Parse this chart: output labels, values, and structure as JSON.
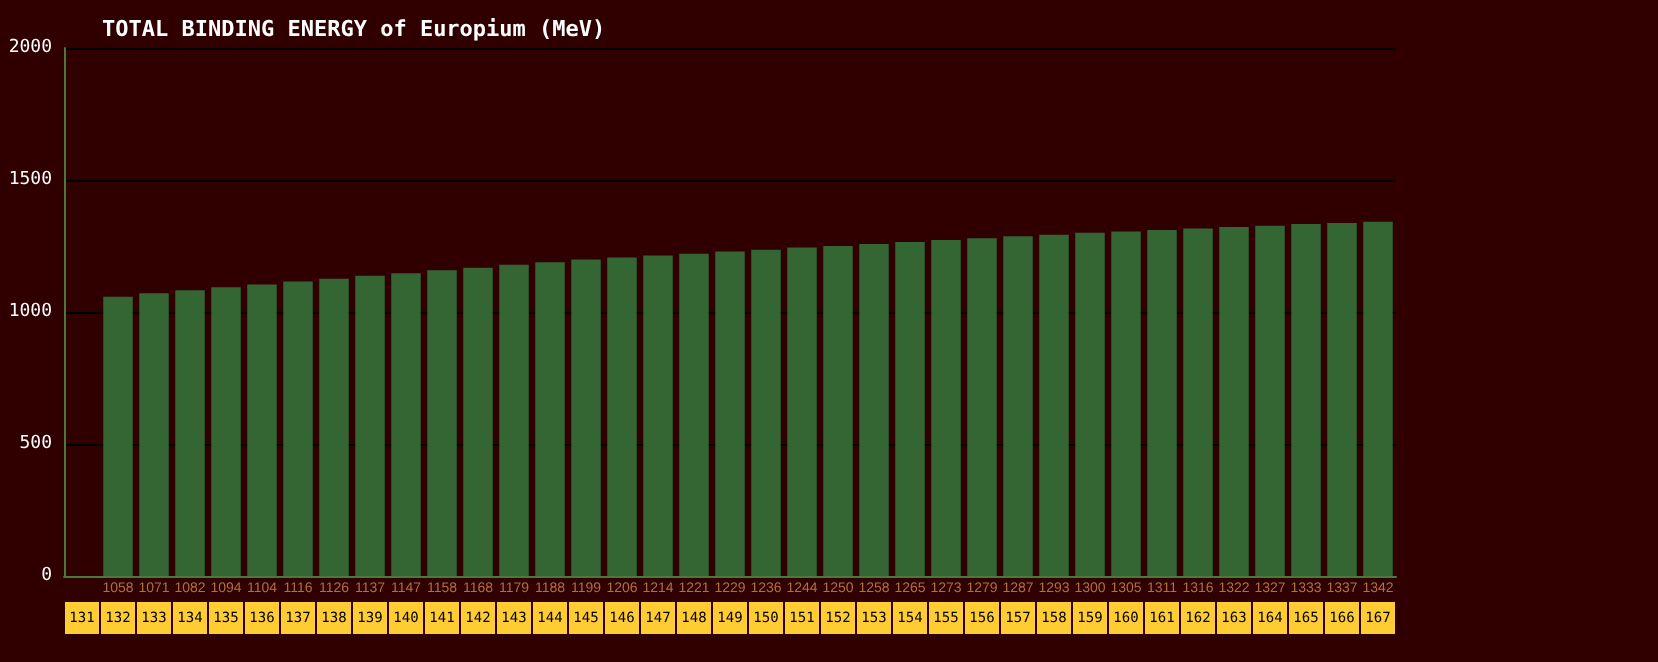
{
  "chart_data": {
    "type": "bar",
    "title": "TOTAL BINDING ENERGY of Europium (MeV)",
    "categories": [
      "131",
      "132",
      "133",
      "134",
      "135",
      "136",
      "137",
      "138",
      "139",
      "140",
      "141",
      "142",
      "143",
      "144",
      "145",
      "146",
      "147",
      "148",
      "149",
      "150",
      "151",
      "152",
      "153",
      "154",
      "155",
      "156",
      "157",
      "158",
      "159",
      "160",
      "161",
      "162",
      "163",
      "164",
      "165",
      "166",
      "167"
    ],
    "values": [
      null,
      1058,
      1071,
      1082,
      1094,
      1104,
      1116,
      1126,
      1137,
      1147,
      1158,
      1168,
      1179,
      1188,
      1199,
      1206,
      1214,
      1221,
      1229,
      1236,
      1244,
      1250,
      1258,
      1265,
      1273,
      1279,
      1287,
      1293,
      1300,
      1305,
      1311,
      1316,
      1322,
      1327,
      1333,
      1337,
      1342
    ],
    "color": "#336633",
    "ylim": [
      0,
      2000
    ],
    "yticks": [
      0,
      500,
      1000,
      1500,
      2000
    ],
    "grid": "y",
    "data_labels": true
  }
}
